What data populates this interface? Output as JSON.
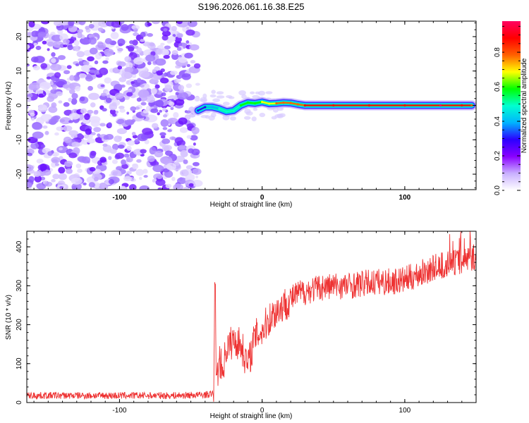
{
  "chart_data": [
    {
      "type": "heatmap",
      "title": "S196.2026.061.16.38.E25",
      "xlabel": "Height of straight line (km)",
      "ylabel": "Frequency (Hz)",
      "xlim": [
        -165,
        150
      ],
      "ylim": [
        -24.5,
        24.5
      ],
      "xticks": [
        -100,
        0,
        100
      ],
      "yticks": [
        20,
        10,
        0,
        -10,
        -20
      ],
      "colorbar": {
        "label": "Normalized spectral amplitude",
        "range": [
          0.0,
          0.98
        ],
        "ticks": [
          "0.0",
          "0.2",
          "0.4",
          "0.6",
          "0.8"
        ],
        "colors": [
          "#ffffff",
          "#c9b0ff",
          "#8a00ff",
          "#2b00ff",
          "#00b4ff",
          "#00ffd0",
          "#00ff00",
          "#ffff00",
          "#ff6000",
          "#ff0000",
          "#ff0060"
        ]
      },
      "noise_region_km": [
        -165,
        -45
      ],
      "signal_track": [
        {
          "x": -45,
          "y": -1.5,
          "amp": 0.25
        },
        {
          "x": -40,
          "y": -0.5,
          "amp": 0.3
        },
        {
          "x": -35,
          "y": -0.5,
          "amp": 0.4
        },
        {
          "x": -30,
          "y": -1.0,
          "amp": 0.45
        },
        {
          "x": -25,
          "y": -1.8,
          "amp": 0.5
        },
        {
          "x": -20,
          "y": -1.5,
          "amp": 0.5
        },
        {
          "x": -15,
          "y": 0.0,
          "amp": 0.55
        },
        {
          "x": -10,
          "y": 0.8,
          "amp": 0.6
        },
        {
          "x": -5,
          "y": 0.6,
          "amp": 0.6
        },
        {
          "x": 0,
          "y": 1.0,
          "amp": 0.65
        },
        {
          "x": 5,
          "y": 0.5,
          "amp": 0.7
        },
        {
          "x": 10,
          "y": 0.6,
          "amp": 0.75
        },
        {
          "x": 15,
          "y": 0.8,
          "amp": 0.8
        },
        {
          "x": 20,
          "y": 0.7,
          "amp": 0.8
        },
        {
          "x": 25,
          "y": 0.3,
          "amp": 0.82
        },
        {
          "x": 30,
          "y": 0.0,
          "amp": 0.85
        },
        {
          "x": 50,
          "y": 0.0,
          "amp": 0.88
        },
        {
          "x": 75,
          "y": 0.0,
          "amp": 0.9
        },
        {
          "x": 100,
          "y": 0.0,
          "amp": 0.92
        },
        {
          "x": 125,
          "y": 0.0,
          "amp": 0.95
        },
        {
          "x": 140,
          "y": 0.0,
          "amp": 0.9
        },
        {
          "x": 147,
          "y": 0.0,
          "amp": 0.8
        }
      ]
    },
    {
      "type": "line",
      "xlabel": "Height of straight line (km)",
      "ylabel": "SNR (10 * v/v)",
      "xlim": [
        -165,
        150
      ],
      "ylim": [
        0,
        440
      ],
      "xticks": [
        -100,
        0,
        100
      ],
      "yticks": [
        0,
        100,
        200,
        300,
        400
      ],
      "color": "#ee3333",
      "series": [
        {
          "name": "SNR",
          "x": [
            -165,
            -140,
            -100,
            -60,
            -40,
            -34,
            -33,
            -32,
            -30,
            -28,
            -25,
            -20,
            -15,
            -10,
            -5,
            0,
            5,
            10,
            15,
            20,
            25,
            30,
            40,
            50,
            60,
            70,
            80,
            90,
            100,
            110,
            120,
            130,
            140,
            150
          ],
          "values": [
            18,
            18,
            18,
            18,
            20,
            22,
            310,
            40,
            120,
            80,
            140,
            160,
            150,
            95,
            170,
            185,
            215,
            235,
            250,
            265,
            280,
            285,
            295,
            300,
            300,
            305,
            310,
            310,
            315,
            330,
            345,
            355,
            365,
            375
          ]
        }
      ]
    }
  ]
}
